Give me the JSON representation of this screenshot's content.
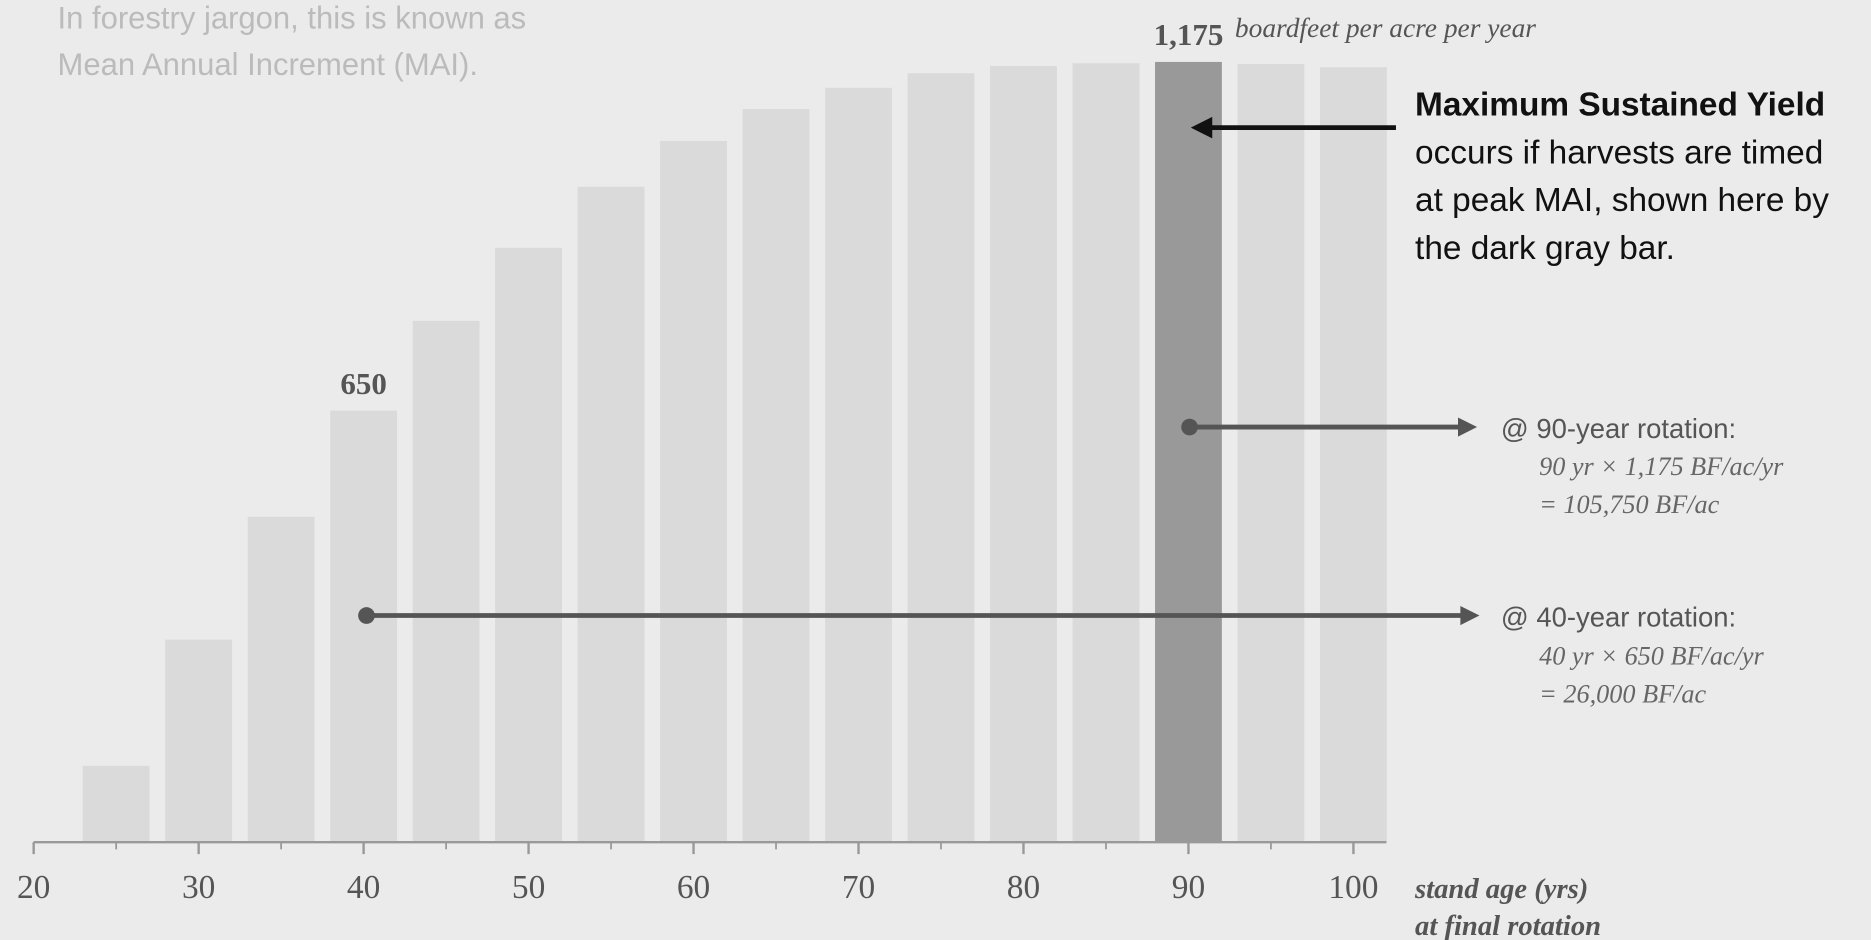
{
  "chart_data": {
    "type": "bar",
    "x": [
      25,
      30,
      35,
      40,
      45,
      50,
      55,
      60,
      65,
      70,
      75,
      80,
      85,
      90,
      95,
      100
    ],
    "values": [
      115,
      305,
      490,
      650,
      785,
      895,
      987,
      1056,
      1104,
      1136,
      1158,
      1169,
      1173,
      1175,
      1172,
      1167
    ],
    "value_labels": [
      null,
      null,
      null,
      "650",
      null,
      null,
      null,
      null,
      null,
      null,
      null,
      null,
      null,
      "1,175",
      null,
      null
    ],
    "colors": [
      "#dadada",
      "#dadada",
      "#dadada",
      "#dadada",
      "#dadada",
      "#dadada",
      "#dadada",
      "#dadada",
      "#dadada",
      "#dadada",
      "#dadada",
      "#dadada",
      "#dadada",
      "#999999",
      "#dadada",
      "#dadada"
    ],
    "xlim": [
      20,
      102
    ],
    "xticks": [
      20,
      30,
      40,
      50,
      60,
      70,
      80,
      90,
      100
    ],
    "ylim": [
      0,
      1200
    ],
    "x_label": [
      "stand age (yrs)",
      "at final rotation"
    ],
    "annotations": {
      "intro": [
        "In forestry jargon, this is known as",
        "Mean Annual Increment (MAI)."
      ],
      "unit": "boardfeet per acre per year",
      "msy_title": "Maximum Sustained Yield",
      "msy_text": [
        "occurs if harvests are timed",
        "at peak MAI, shown here by",
        "the dark gray bar."
      ],
      "rotation_90": {
        "title": "@ 90-year rotation:",
        "lines": [
          "90 yr × 1,175 BF/ac/yr",
          "= 105,750 BF/ac"
        ]
      },
      "rotation_40": {
        "title": "@ 40-year rotation:",
        "lines": [
          "40 yr × 650 BF/ac/yr",
          "= 26,000 BF/ac"
        ]
      }
    }
  }
}
